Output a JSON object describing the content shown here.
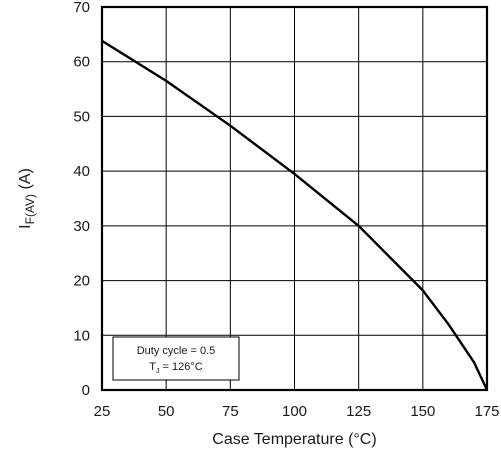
{
  "chart_data": {
    "type": "line",
    "title": "",
    "xlabel": "Case Temperature (°C)",
    "ylabel": {
      "main": "I",
      "subscript": "F(AV)",
      "unit": " (A)"
    },
    "xlim": [
      25,
      175
    ],
    "ylim": [
      0,
      70
    ],
    "xticks": [
      25,
      50,
      75,
      100,
      125,
      150,
      175
    ],
    "yticks": [
      0,
      10,
      20,
      30,
      40,
      50,
      60,
      70
    ],
    "grid": true,
    "series": [
      {
        "x": [
          25,
          50,
          75,
          100,
          125,
          150,
          160,
          170,
          175
        ],
        "y": [
          63.8,
          56.5,
          48.3,
          39.5,
          30.0,
          18.2,
          12.0,
          5.0,
          0
        ],
        "color": "#000000"
      }
    ],
    "annotation": {
      "line1": "Duty cycle = 0.5",
      "line2_main": "T",
      "line2_sub": "J",
      "line2_rest": " = 126°C"
    }
  }
}
